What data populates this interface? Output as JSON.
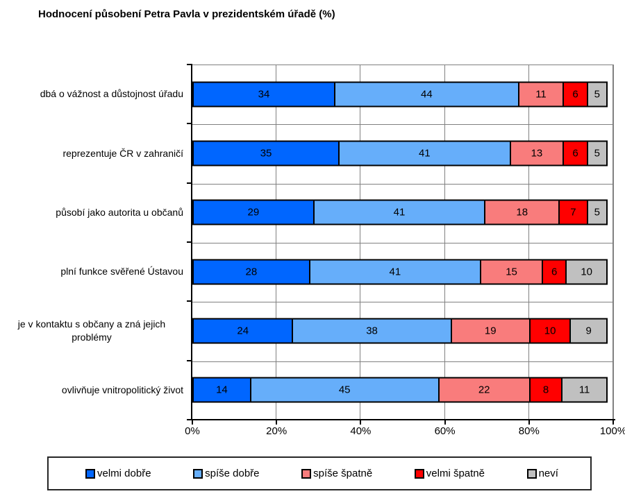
{
  "chart_data": {
    "type": "bar",
    "stacked": true,
    "orientation": "horizontal",
    "title": "Hodnocení působení Petra Pavla v prezidentském úřadě (%)",
    "categories": [
      "dbá o vážnost a důstojnost úřadu",
      "reprezentuje ČR v zahraničí",
      "působí jako autorita u občanů",
      "plní funkce svěřené Ústavou",
      "je v kontaktu s občany a zná jejich problémy",
      "ovlivňuje vnitropolitický život"
    ],
    "series": [
      {
        "name": "velmi dobře",
        "color": "#0066FF",
        "values": [
          34,
          35,
          29,
          28,
          24,
          14
        ]
      },
      {
        "name": "spíše dobře",
        "color": "#66AEFA",
        "values": [
          44,
          41,
          41,
          41,
          38,
          45
        ]
      },
      {
        "name": "spíše špatně",
        "color": "#F97C7C",
        "values": [
          11,
          13,
          18,
          15,
          19,
          22
        ]
      },
      {
        "name": "velmi špatně",
        "color": "#FF0000",
        "values": [
          6,
          6,
          7,
          6,
          10,
          8
        ]
      },
      {
        "name": "neví",
        "color": "#C0C0C0",
        "values": [
          5,
          5,
          5,
          10,
          9,
          11
        ]
      }
    ],
    "x_axis": {
      "ticks": [
        "0%",
        "20%",
        "40%",
        "60%",
        "80%",
        "100%"
      ],
      "min": 0,
      "max": 100
    },
    "legend_position": "bottom",
    "grid": true,
    "grid_color": "#808080",
    "axis_color": "#000000",
    "bar_border_color": "#000000"
  }
}
